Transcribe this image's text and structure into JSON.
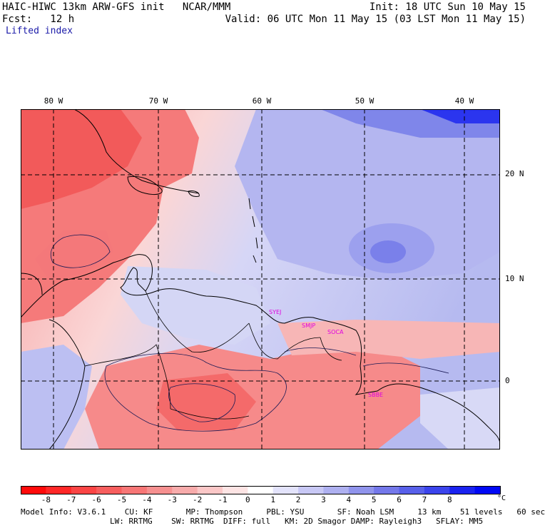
{
  "header": {
    "left_line1": "HAIC-HIWC 13km ARW-GFS init   NCAR/MMM",
    "left_line2": "Fcst:   12 h",
    "field": "Lifted index",
    "right_line1": "Init: 18 UTC Sun 10 May 15",
    "right_line2": "Valid: 06 UTC Mon 11 May 15 (03 LST Mon 11 May 15)"
  },
  "map": {
    "lon_labels": [
      "80 W",
      "70 W",
      "60 W",
      "50 W",
      "40 W"
    ],
    "lat_labels": [
      "20 N",
      "10 N",
      "0"
    ],
    "stations": [
      "SYEJ",
      "SMJP",
      "SOCA",
      "SBBE"
    ]
  },
  "colorbar": {
    "ticks": [
      "-8",
      "-7",
      "-6",
      "-5",
      "-4",
      "-3",
      "-2",
      "-1",
      "0",
      "1",
      "2",
      "3",
      "4",
      "5",
      "6",
      "7",
      "8"
    ],
    "unit": "°C",
    "colors": [
      "#ff0a0a",
      "#ff2727",
      "#fb4545",
      "#f75e5e",
      "#f77676",
      "#f69090",
      "#f7abab",
      "#fbc7c7",
      "#fde4e4",
      "#ffffff",
      "#e3e3fb",
      "#c8c8f5",
      "#aeb0f0",
      "#9094ec",
      "#7478ea",
      "#5860ea",
      "#3b44ec",
      "#1a22f0",
      "#0008f5"
    ]
  },
  "footer": {
    "line1": "Model Info: V3.6.1    CU: KF       MP: Thompson     PBL: YSU       SF: Noah LSM     13 km    51 levels   60 sec",
    "line2": "LW: RRTMG    SW: RRTMG  DIFF: full   KM: 2D Smagor DAMP: Rayleigh3   SFLAY: MM5"
  }
}
